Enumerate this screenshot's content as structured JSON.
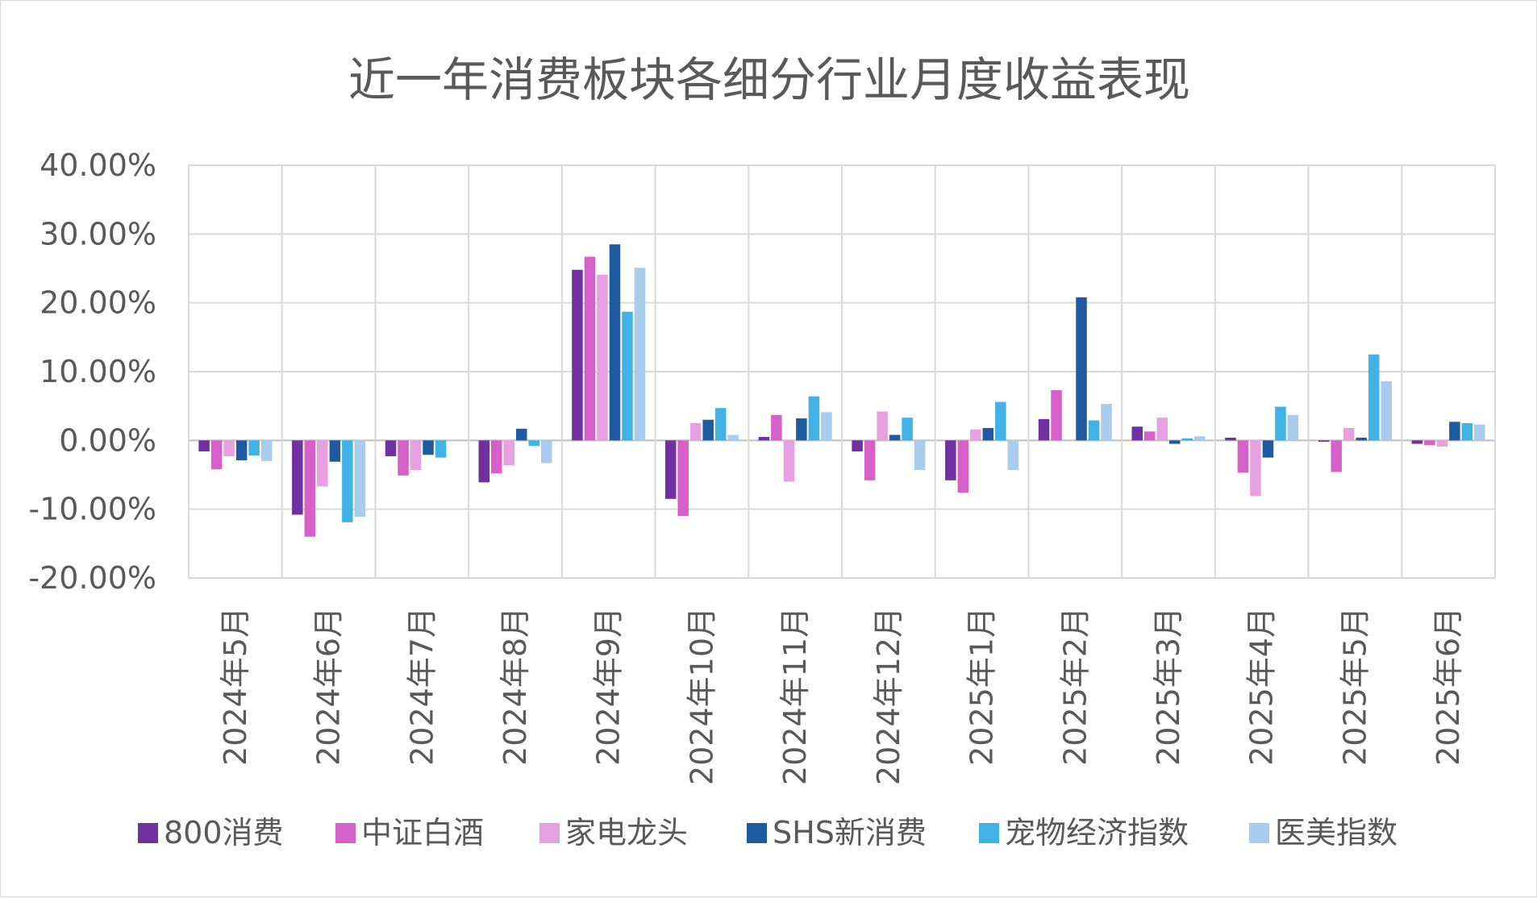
{
  "chart_data": {
    "type": "bar",
    "title": "近一年消费板块各细分行业月度收益表现",
    "xlabel": "",
    "ylabel": "",
    "ylim": [
      -20,
      40
    ],
    "yticks": [
      40,
      30,
      20,
      10,
      0,
      -10,
      -20
    ],
    "ytick_labels": [
      "40.00%",
      "30.00%",
      "20.00%",
      "10.00%",
      "0.00%",
      "-10.00%",
      "-20.00%"
    ],
    "grid": true,
    "legend_position": "bottom",
    "categories": [
      "2024年5月",
      "2024年6月",
      "2024年7月",
      "2024年8月",
      "2024年9月",
      "2024年10月",
      "2024年11月",
      "2024年12月",
      "2025年1月",
      "2025年2月",
      "2025年3月",
      "2025年4月",
      "2025年5月",
      "2025年6月"
    ],
    "series": [
      {
        "name": "800消费",
        "color": "#7030a0",
        "values": [
          -1.6,
          -10.8,
          -2.3,
          -6.1,
          24.8,
          -8.5,
          0.5,
          -1.6,
          -5.8,
          3.1,
          2.0,
          0.4,
          -0.2,
          -0.5
        ]
      },
      {
        "name": "中证白酒",
        "color": "#d660c8",
        "values": [
          -4.2,
          -14.0,
          -5.1,
          -4.8,
          26.7,
          -11.0,
          3.7,
          -5.8,
          -7.6,
          7.3,
          1.3,
          -4.7,
          -4.6,
          -0.7
        ]
      },
      {
        "name": "家电龙头",
        "color": "#e8a1e0",
        "values": [
          -2.3,
          -6.7,
          -4.3,
          -3.6,
          24.1,
          2.5,
          -6.0,
          4.2,
          1.6,
          0.0,
          3.3,
          -8.1,
          1.8,
          -0.9
        ]
      },
      {
        "name": "SHS新消费",
        "color": "#1f5aa0",
        "values": [
          -2.9,
          -3.1,
          -2.1,
          1.7,
          28.5,
          3.0,
          3.2,
          0.8,
          1.8,
          20.8,
          -0.5,
          -2.5,
          0.4,
          2.7
        ]
      },
      {
        "name": "宠物经济指数",
        "color": "#42b1e6",
        "values": [
          -2.2,
          -11.9,
          -2.5,
          -0.8,
          18.7,
          4.7,
          6.4,
          3.3,
          5.6,
          2.9,
          0.3,
          4.9,
          12.5,
          2.5
        ]
      },
      {
        "name": "医美指数",
        "color": "#a8cbee",
        "values": [
          -3.0,
          -11.1,
          0.0,
          -3.3,
          25.1,
          0.8,
          4.1,
          -4.3,
          -4.3,
          5.3,
          0.6,
          3.7,
          8.6,
          2.3
        ]
      }
    ]
  }
}
